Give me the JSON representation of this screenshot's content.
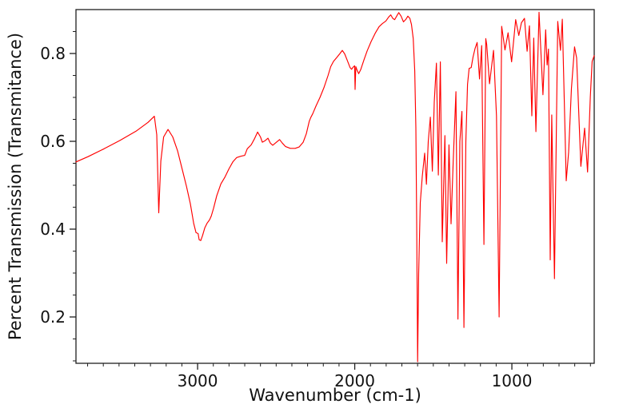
{
  "figure": {
    "background": "#ffffff",
    "spine_color": "#1f1f1f",
    "text_color": "#111111"
  },
  "chart_data": {
    "type": "line",
    "title": "",
    "xlabel": "Wavenumber (cm-1)",
    "ylabel": "Percent Transmission (Transmitance)",
    "xlim": [
      3774,
      476
    ],
    "ylim": [
      0.0945,
      0.9
    ],
    "x_axis_reversed": true,
    "grid": false,
    "legend": "none",
    "x_ticks": [
      3000,
      2000,
      1000
    ],
    "x_tick_labels": [
      "3000",
      "2000",
      "1000"
    ],
    "x_minor_tick_step": 100,
    "y_ticks": [
      0.2,
      0.4,
      0.6,
      0.8
    ],
    "y_tick_labels": [
      "0.2",
      "0.4",
      "0.6",
      "0.8"
    ],
    "y_minor_tick_step": 0.05,
    "series": [
      {
        "name": "IR transmittance spectrum",
        "color": "#ff0000",
        "points": [
          [
            3774,
            0.553
          ],
          [
            3697,
            0.565
          ],
          [
            3595,
            0.583
          ],
          [
            3494,
            0.602
          ],
          [
            3392,
            0.623
          ],
          [
            3316,
            0.643
          ],
          [
            3275,
            0.657
          ],
          [
            3260,
            0.615
          ],
          [
            3247,
            0.437
          ],
          [
            3234,
            0.555
          ],
          [
            3216,
            0.61
          ],
          [
            3188,
            0.627
          ],
          [
            3158,
            0.61
          ],
          [
            3127,
            0.578
          ],
          [
            3097,
            0.535
          ],
          [
            3071,
            0.498
          ],
          [
            3046,
            0.458
          ],
          [
            3025,
            0.413
          ],
          [
            3010,
            0.392
          ],
          [
            2997,
            0.39
          ],
          [
            2990,
            0.376
          ],
          [
            2980,
            0.374
          ],
          [
            2969,
            0.385
          ],
          [
            2954,
            0.403
          ],
          [
            2939,
            0.414
          ],
          [
            2924,
            0.421
          ],
          [
            2913,
            0.43
          ],
          [
            2898,
            0.448
          ],
          [
            2878,
            0.476
          ],
          [
            2852,
            0.503
          ],
          [
            2827,
            0.518
          ],
          [
            2801,
            0.537
          ],
          [
            2776,
            0.553
          ],
          [
            2751,
            0.563
          ],
          [
            2725,
            0.566
          ],
          [
            2700,
            0.568
          ],
          [
            2684,
            0.583
          ],
          [
            2659,
            0.592
          ],
          [
            2639,
            0.605
          ],
          [
            2618,
            0.621
          ],
          [
            2600,
            0.61
          ],
          [
            2588,
            0.598
          ],
          [
            2572,
            0.601
          ],
          [
            2552,
            0.607
          ],
          [
            2537,
            0.596
          ],
          [
            2522,
            0.591
          ],
          [
            2501,
            0.597
          ],
          [
            2478,
            0.604
          ],
          [
            2461,
            0.596
          ],
          [
            2440,
            0.588
          ],
          [
            2410,
            0.584
          ],
          [
            2379,
            0.584
          ],
          [
            2354,
            0.587
          ],
          [
            2328,
            0.598
          ],
          [
            2308,
            0.617
          ],
          [
            2290,
            0.645
          ],
          [
            2280,
            0.654
          ],
          [
            2267,
            0.663
          ],
          [
            2247,
            0.68
          ],
          [
            2221,
            0.7
          ],
          [
            2196,
            0.722
          ],
          [
            2170,
            0.75
          ],
          [
            2153,
            0.77
          ],
          [
            2135,
            0.782
          ],
          [
            2114,
            0.791
          ],
          [
            2094,
            0.8
          ],
          [
            2079,
            0.807
          ],
          [
            2064,
            0.799
          ],
          [
            2046,
            0.783
          ],
          [
            2030,
            0.768
          ],
          [
            2020,
            0.764
          ],
          [
            2010,
            0.769
          ],
          [
            2001,
            0.772
          ],
          [
            1998,
            0.718
          ],
          [
            1993,
            0.77
          ],
          [
            1985,
            0.762
          ],
          [
            1975,
            0.754
          ],
          [
            1962,
            0.763
          ],
          [
            1941,
            0.786
          ],
          [
            1921,
            0.806
          ],
          [
            1896,
            0.827
          ],
          [
            1870,
            0.846
          ],
          [
            1845,
            0.861
          ],
          [
            1824,
            0.868
          ],
          [
            1802,
            0.874
          ],
          [
            1784,
            0.883
          ],
          [
            1771,
            0.888
          ],
          [
            1758,
            0.88
          ],
          [
            1746,
            0.877
          ],
          [
            1733,
            0.885
          ],
          [
            1720,
            0.893
          ],
          [
            1705,
            0.885
          ],
          [
            1690,
            0.872
          ],
          [
            1674,
            0.878
          ],
          [
            1662,
            0.885
          ],
          [
            1649,
            0.88
          ],
          [
            1639,
            0.866
          ],
          [
            1628,
            0.834
          ],
          [
            1618,
            0.76
          ],
          [
            1611,
            0.63
          ],
          [
            1606,
            0.42
          ],
          [
            1600,
            0.098
          ],
          [
            1593,
            0.3
          ],
          [
            1583,
            0.46
          ],
          [
            1570,
            0.52
          ],
          [
            1555,
            0.573
          ],
          [
            1544,
            0.502
          ],
          [
            1532,
            0.6
          ],
          [
            1519,
            0.655
          ],
          [
            1506,
            0.532
          ],
          [
            1494,
            0.69
          ],
          [
            1480,
            0.778
          ],
          [
            1468,
            0.523
          ],
          [
            1455,
            0.781
          ],
          [
            1443,
            0.371
          ],
          [
            1426,
            0.613
          ],
          [
            1415,
            0.322
          ],
          [
            1400,
            0.592
          ],
          [
            1387,
            0.412
          ],
          [
            1374,
            0.55
          ],
          [
            1356,
            0.713
          ],
          [
            1343,
            0.195
          ],
          [
            1331,
            0.6
          ],
          [
            1318,
            0.668
          ],
          [
            1305,
            0.176
          ],
          [
            1293,
            0.6
          ],
          [
            1282,
            0.73
          ],
          [
            1272,
            0.766
          ],
          [
            1259,
            0.768
          ],
          [
            1247,
            0.792
          ],
          [
            1234,
            0.812
          ],
          [
            1221,
            0.825
          ],
          [
            1206,
            0.742
          ],
          [
            1192,
            0.818
          ],
          [
            1178,
            0.365
          ],
          [
            1166,
            0.834
          ],
          [
            1160,
            0.82
          ],
          [
            1142,
            0.731
          ],
          [
            1117,
            0.807
          ],
          [
            1098,
            0.658
          ],
          [
            1081,
            0.2
          ],
          [
            1065,
            0.862
          ],
          [
            1044,
            0.808
          ],
          [
            1024,
            0.847
          ],
          [
            1002,
            0.781
          ],
          [
            976,
            0.877
          ],
          [
            956,
            0.841
          ],
          [
            939,
            0.87
          ],
          [
            920,
            0.88
          ],
          [
            903,
            0.805
          ],
          [
            888,
            0.863
          ],
          [
            873,
            0.658
          ],
          [
            861,
            0.835
          ],
          [
            847,
            0.622
          ],
          [
            827,
            0.894
          ],
          [
            802,
            0.706
          ],
          [
            785,
            0.854
          ],
          [
            776,
            0.774
          ],
          [
            767,
            0.81
          ],
          [
            756,
            0.33
          ],
          [
            746,
            0.66
          ],
          [
            729,
            0.287
          ],
          [
            708,
            0.873
          ],
          [
            691,
            0.807
          ],
          [
            679,
            0.878
          ],
          [
            654,
            0.51
          ],
          [
            639,
            0.575
          ],
          [
            621,
            0.72
          ],
          [
            601,
            0.815
          ],
          [
            588,
            0.79
          ],
          [
            561,
            0.543
          ],
          [
            537,
            0.63
          ],
          [
            518,
            0.53
          ],
          [
            501,
            0.7
          ],
          [
            489,
            0.782
          ],
          [
            476,
            0.795
          ]
        ]
      }
    ]
  }
}
